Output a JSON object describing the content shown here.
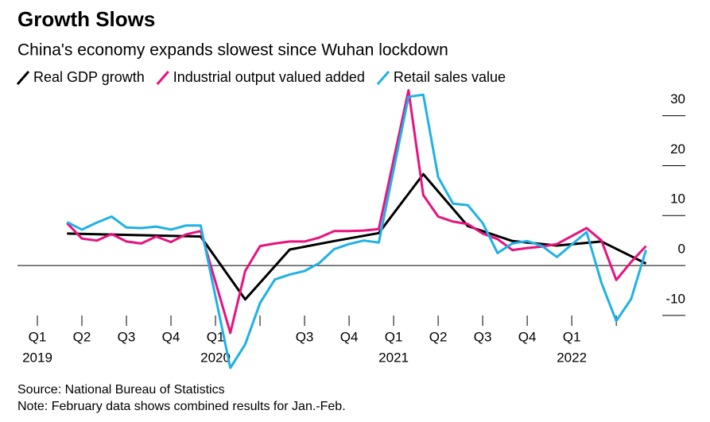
{
  "chart_data": {
    "type": "line",
    "title": "Growth Slows",
    "subtitle": "China's economy expands slowest since Wuhan lockdown",
    "source": "Source: National Bureau of Statistics",
    "note": "Note: February data shows combined results for Jan.-Feb.",
    "series": [
      {
        "name": "Real GDP growth",
        "color": "#000000",
        "x": [
          "2019-03",
          "2019-06",
          "2019-09",
          "2019-12",
          "2020-03",
          "2020-06",
          "2020-09",
          "2020-12",
          "2021-03",
          "2021-06",
          "2021-09",
          "2021-12",
          "2022-03",
          "2022-06"
        ],
        "values": [
          6.4,
          6.2,
          6.0,
          5.8,
          -6.8,
          3.2,
          4.9,
          6.5,
          18.3,
          7.9,
          4.9,
          4.0,
          4.8,
          0.4
        ]
      },
      {
        "name": "Industrial output valued added",
        "color": "#e8127f",
        "x": [
          "2019-03",
          "2019-04",
          "2019-05",
          "2019-06",
          "2019-07",
          "2019-08",
          "2019-09",
          "2019-10",
          "2019-11",
          "2019-12",
          "2020-02",
          "2020-03",
          "2020-04",
          "2020-05",
          "2020-06",
          "2020-07",
          "2020-08",
          "2020-09",
          "2020-10",
          "2020-11",
          "2020-12",
          "2021-02",
          "2021-03",
          "2021-04",
          "2021-05",
          "2021-06",
          "2021-07",
          "2021-08",
          "2021-09",
          "2021-10",
          "2021-11",
          "2021-12",
          "2022-02",
          "2022-03",
          "2022-04",
          "2022-05",
          "2022-06"
        ],
        "values": [
          8.5,
          5.4,
          5.0,
          6.3,
          4.8,
          4.4,
          5.8,
          4.7,
          6.2,
          6.9,
          -13.5,
          -1.1,
          3.9,
          4.4,
          4.8,
          4.8,
          5.6,
          6.9,
          6.9,
          7.0,
          7.3,
          35.1,
          14.1,
          9.8,
          8.8,
          8.3,
          6.4,
          5.3,
          3.1,
          3.5,
          3.8,
          4.3,
          7.5,
          5.0,
          -2.9,
          0.7,
          3.9
        ]
      },
      {
        "name": "Retail sales value",
        "color": "#1fb1e6",
        "x": [
          "2019-03",
          "2019-04",
          "2019-05",
          "2019-06",
          "2019-07",
          "2019-08",
          "2019-09",
          "2019-10",
          "2019-11",
          "2019-12",
          "2020-02",
          "2020-03",
          "2020-04",
          "2020-05",
          "2020-06",
          "2020-07",
          "2020-08",
          "2020-09",
          "2020-10",
          "2020-11",
          "2020-12",
          "2021-02",
          "2021-03",
          "2021-04",
          "2021-05",
          "2021-06",
          "2021-07",
          "2021-08",
          "2021-09",
          "2021-10",
          "2021-11",
          "2021-12",
          "2022-02",
          "2022-03",
          "2022-04",
          "2022-05",
          "2022-06"
        ],
        "values": [
          8.7,
          7.2,
          8.6,
          9.8,
          7.6,
          7.5,
          7.8,
          7.2,
          8.0,
          8.0,
          -20.5,
          -15.8,
          -7.5,
          -2.8,
          -1.8,
          -1.1,
          0.5,
          3.3,
          4.3,
          5.0,
          4.6,
          33.8,
          34.2,
          17.7,
          12.4,
          12.1,
          8.5,
          2.5,
          4.4,
          4.9,
          3.9,
          1.7,
          6.7,
          -3.5,
          -11.1,
          -6.7,
          3.1
        ]
      }
    ],
    "ylim": [
      -21,
      34
    ],
    "yticks": [
      30,
      20,
      10,
      0,
      -10
    ],
    "xticks": [
      {
        "value": "2019-01",
        "label": "Q1"
      },
      {
        "value": "2019-04",
        "label": "Q2"
      },
      {
        "value": "2019-07",
        "label": "Q3"
      },
      {
        "value": "2019-10",
        "label": "Q4"
      },
      {
        "value": "2020-01",
        "label": "Q1"
      },
      {
        "value": "2020-04",
        "label": null
      },
      {
        "value": "2020-07",
        "label": "Q3"
      },
      {
        "value": "2020-10",
        "label": "Q4"
      },
      {
        "value": "2021-01",
        "label": "Q1"
      },
      {
        "value": "2021-04",
        "label": "Q2"
      },
      {
        "value": "2021-07",
        "label": "Q3"
      },
      {
        "value": "2021-10",
        "label": "Q4"
      },
      {
        "value": "2022-01",
        "label": "Q1"
      },
      {
        "value": "2022-04",
        "label": null
      }
    ],
    "year_labels": [
      {
        "value": "2019-01",
        "label": "2019"
      },
      {
        "value": "2020-01",
        "label": "2020"
      },
      {
        "value": "2021-01",
        "label": "2021"
      },
      {
        "value": "2022-01",
        "label": "2022"
      }
    ],
    "legend": "top"
  }
}
